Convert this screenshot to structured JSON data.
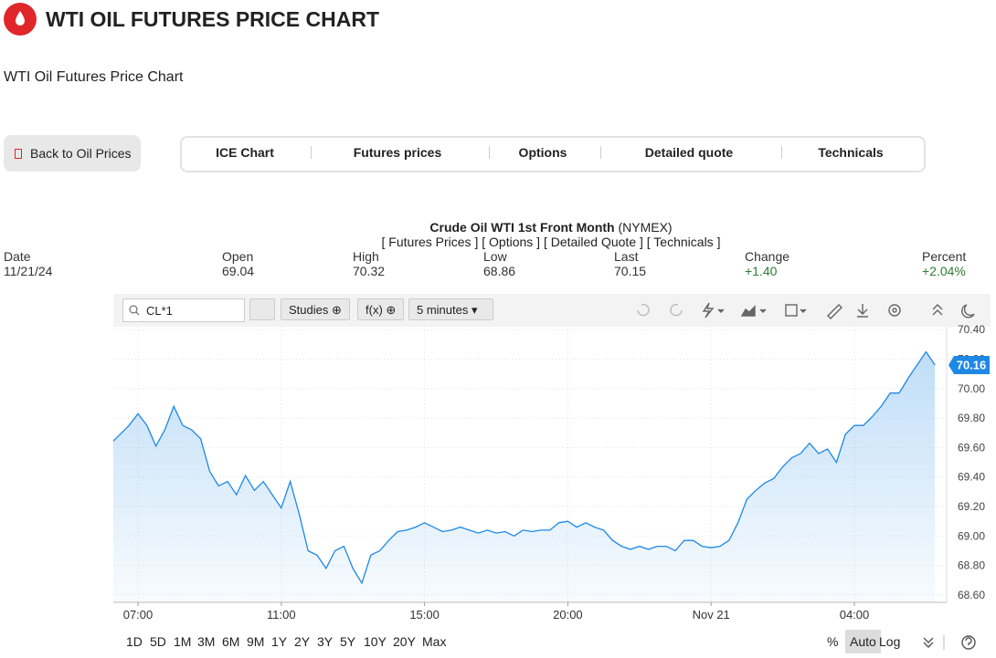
{
  "header": {
    "title": "WTI OIL FUTURES PRICE CHART",
    "subtitle": "WTI Oil Futures Price Chart"
  },
  "back_button": "Back to Oil Prices",
  "tabs": [
    "ICE Chart",
    "Futures prices",
    "Options",
    "Detailed quote",
    "Technicals"
  ],
  "quote": {
    "title": "Crude Oil WTI 1st Front Month",
    "exchange": "(NYMEX)",
    "links": [
      "[ Futures Prices ]",
      "[ Options ]",
      "[ Detailed Quote ]",
      "[ Technicals ]"
    ],
    "columns": [
      {
        "label": "Date",
        "value": "11/21/24"
      },
      {
        "label": "Open",
        "value": "69.04"
      },
      {
        "label": "High",
        "value": "70.32"
      },
      {
        "label": "Low",
        "value": "68.86"
      },
      {
        "label": "Last",
        "value": "70.15"
      },
      {
        "label": "Change",
        "value": "+1.40"
      },
      {
        "label": "Percent",
        "value": "+2.04%"
      }
    ]
  },
  "toolbar": {
    "symbol": "CL*1",
    "studies": "Studies",
    "fx": "f(x)",
    "interval": "5 minutes"
  },
  "ranges": [
    "1D",
    "5D",
    "1M",
    "3M",
    "6M",
    "9M",
    "1Y",
    "2Y",
    "3Y",
    "5Y",
    "10Y",
    "20Y",
    "Max"
  ],
  "scale_options": [
    "%",
    "Auto",
    "Log"
  ],
  "chart_data": {
    "type": "line",
    "color": "#1e88e5",
    "grid": true,
    "categories": [
      null,
      null,
      null,
      "07:00",
      null,
      null,
      null,
      null,
      null,
      null,
      null,
      null,
      null,
      null,
      null,
      null,
      null,
      null,
      null,
      "11:00",
      null,
      null,
      null,
      null,
      null,
      null,
      null,
      null,
      null,
      null,
      null,
      null,
      null,
      null,
      null,
      "15:00",
      null,
      null,
      null,
      null,
      null,
      null,
      null,
      null,
      null,
      null,
      null,
      null,
      null,
      null,
      null,
      "20:00",
      null,
      null,
      null,
      null,
      null,
      null,
      null,
      null,
      null,
      null,
      null,
      null,
      null,
      null,
      null,
      "Nov 21",
      null,
      null,
      null,
      null,
      null,
      null,
      null,
      null,
      null,
      null,
      null,
      null,
      null,
      null,
      null,
      "04:00",
      null,
      null,
      null,
      null,
      null,
      null,
      null,
      null,
      null
    ],
    "values": [
      69.63,
      69.69,
      69.75,
      69.83,
      69.75,
      69.61,
      69.72,
      69.88,
      69.75,
      69.72,
      69.66,
      69.44,
      69.34,
      69.37,
      69.28,
      69.41,
      69.31,
      69.37,
      69.28,
      69.19,
      69.37,
      69.15,
      68.9,
      68.87,
      68.78,
      68.9,
      68.93,
      68.78,
      68.68,
      68.87,
      68.9,
      68.97,
      69.03,
      69.04,
      69.06,
      69.09,
      69.06,
      69.03,
      69.04,
      69.06,
      69.04,
      69.02,
      69.04,
      69.02,
      69.03,
      69.0,
      69.04,
      69.03,
      69.04,
      69.04,
      69.09,
      69.1,
      69.06,
      69.09,
      69.06,
      69.04,
      68.97,
      68.93,
      68.91,
      68.93,
      68.91,
      68.93,
      68.93,
      68.9,
      68.97,
      68.97,
      68.93,
      68.92,
      68.93,
      68.97,
      69.09,
      69.25,
      69.31,
      69.36,
      69.39,
      69.47,
      69.53,
      69.56,
      69.63,
      69.56,
      69.59,
      69.5,
      69.69,
      69.75,
      69.75,
      69.81,
      69.88,
      69.97,
      69.97,
      70.07,
      70.16,
      70.25,
      70.16
    ],
    "ylim": [
      68.55,
      70.42
    ],
    "yticks": [
      {
        "value": 68.6,
        "label": "68.60"
      },
      {
        "value": 68.8,
        "label": "68.80"
      },
      {
        "value": 69.0,
        "label": "69.00"
      },
      {
        "value": 69.2,
        "label": "69.20"
      },
      {
        "value": 69.4,
        "label": "69.40"
      },
      {
        "value": 69.6,
        "label": "69.60"
      },
      {
        "value": 69.8,
        "label": "69.80"
      },
      {
        "value": 70.0,
        "label": "70.00"
      },
      {
        "value": 70.2,
        "label": "70.20"
      },
      {
        "value": 70.4,
        "label": "70.40"
      }
    ],
    "last_price": 70.16
  }
}
